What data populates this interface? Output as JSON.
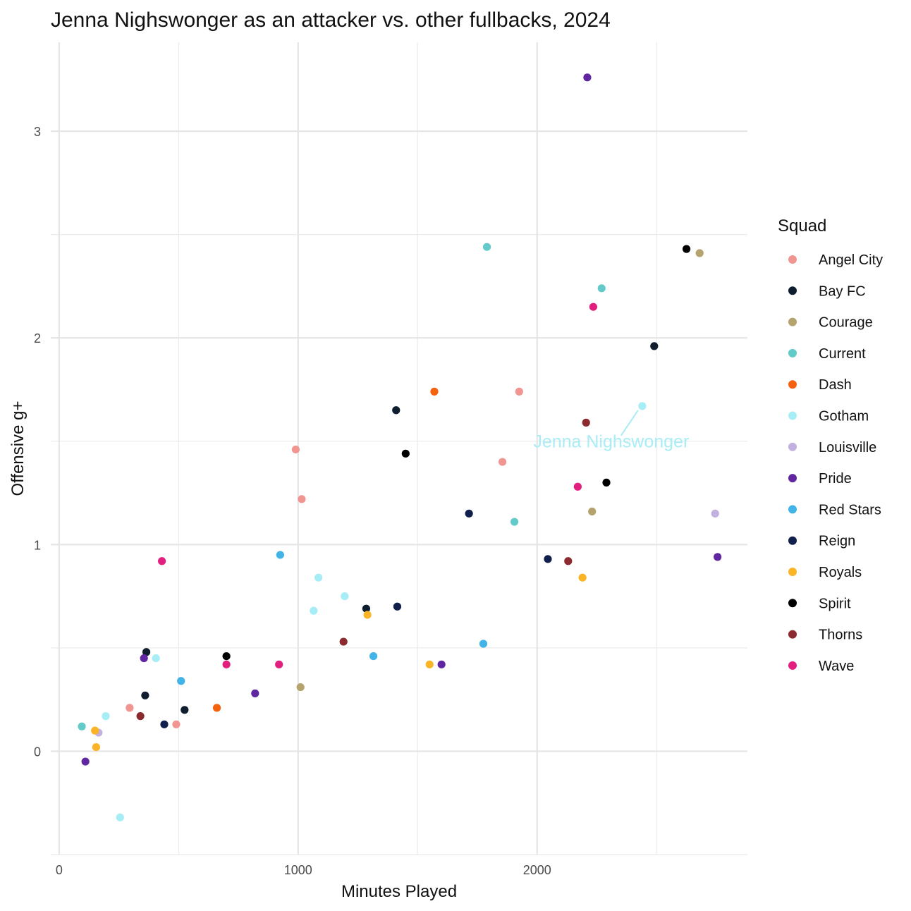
{
  "chart_data": {
    "type": "scatter",
    "title": "Jenna Nighswonger as an attacker vs. other fullbacks, 2024",
    "xlabel": "Minutes Played",
    "ylabel": "Offensive g+",
    "xlim": [
      -35,
      2880
    ],
    "ylim": [
      -0.5,
      3.43
    ],
    "x_ticks": [
      0,
      1000,
      2000
    ],
    "y_ticks": [
      0,
      1,
      2,
      3
    ],
    "grid": true,
    "legend": {
      "title": "Squad",
      "position": "right"
    },
    "series": [
      {
        "name": "Angel City",
        "color": "#F0958F",
        "points": [
          [
            295,
            0.21
          ],
          [
            490,
            0.13
          ],
          [
            990,
            1.46
          ],
          [
            1015,
            1.22
          ],
          [
            1855,
            1.4
          ],
          [
            1925,
            1.74
          ]
        ]
      },
      {
        "name": "Bay FC",
        "color": "#0E1E2F",
        "points": [
          [
            365,
            0.48
          ],
          [
            360,
            0.27
          ],
          [
            525,
            0.2
          ],
          [
            1285,
            0.69
          ],
          [
            1410,
            1.65
          ],
          [
            2490,
            1.96
          ]
        ]
      },
      {
        "name": "Courage",
        "color": "#B5A36E",
        "points": [
          [
            1010,
            0.31
          ],
          [
            2230,
            1.16
          ],
          [
            2680,
            2.41
          ]
        ]
      },
      {
        "name": "Current",
        "color": "#62CBC9",
        "points": [
          [
            95,
            0.12
          ],
          [
            1790,
            2.44
          ],
          [
            1905,
            1.11
          ],
          [
            2270,
            2.24
          ]
        ]
      },
      {
        "name": "Dash",
        "color": "#F5620F",
        "points": [
          [
            660,
            0.21
          ],
          [
            1570,
            1.74
          ]
        ]
      },
      {
        "name": "Gotham",
        "color": "#A7EDF6",
        "points": [
          [
            195,
            0.17
          ],
          [
            255,
            -0.32
          ],
          [
            405,
            0.45
          ],
          [
            1065,
            0.68
          ],
          [
            1085,
            0.84
          ],
          [
            1195,
            0.75
          ],
          [
            2440,
            1.67
          ]
        ]
      },
      {
        "name": "Louisville",
        "color": "#C1B0E0",
        "points": [
          [
            165,
            0.09
          ],
          [
            2745,
            1.15
          ]
        ]
      },
      {
        "name": "Pride",
        "color": "#6127A0",
        "points": [
          [
            110,
            -0.05
          ],
          [
            355,
            0.45
          ],
          [
            820,
            0.28
          ],
          [
            1600,
            0.42
          ],
          [
            2210,
            3.26
          ],
          [
            2755,
            0.94
          ]
        ]
      },
      {
        "name": "Red Stars",
        "color": "#41B3E6",
        "points": [
          [
            510,
            0.34
          ],
          [
            925,
            0.95
          ],
          [
            1315,
            0.46
          ],
          [
            1775,
            0.52
          ]
        ]
      },
      {
        "name": "Reign",
        "color": "#101F4C",
        "points": [
          [
            440,
            0.13
          ],
          [
            1415,
            0.7
          ],
          [
            1715,
            1.15
          ],
          [
            2045,
            0.93
          ]
        ]
      },
      {
        "name": "Royals",
        "color": "#FBB426",
        "points": [
          [
            150,
            0.1
          ],
          [
            155,
            0.02
          ],
          [
            1290,
            0.66
          ],
          [
            1550,
            0.42
          ],
          [
            2190,
            0.84
          ]
        ]
      },
      {
        "name": "Spirit",
        "color": "#000000",
        "points": [
          [
            700,
            0.46
          ],
          [
            1450,
            1.44
          ],
          [
            2290,
            1.3
          ],
          [
            2625,
            2.43
          ]
        ]
      },
      {
        "name": "Thorns",
        "color": "#8B2A2F",
        "points": [
          [
            340,
            0.17
          ],
          [
            1190,
            0.53
          ],
          [
            2130,
            0.92
          ],
          [
            2205,
            1.59
          ]
        ]
      },
      {
        "name": "Wave",
        "color": "#E21F7F",
        "points": [
          [
            430,
            0.92
          ],
          [
            700,
            0.42
          ],
          [
            920,
            0.42
          ],
          [
            2170,
            1.28
          ],
          [
            2235,
            2.15
          ]
        ]
      }
    ],
    "annotations": [
      {
        "text": "Jenna Nighswonger",
        "target": [
          2440,
          1.67
        ],
        "label_at": [
          2310,
          1.5
        ],
        "color": "#A7EDF6"
      }
    ]
  }
}
